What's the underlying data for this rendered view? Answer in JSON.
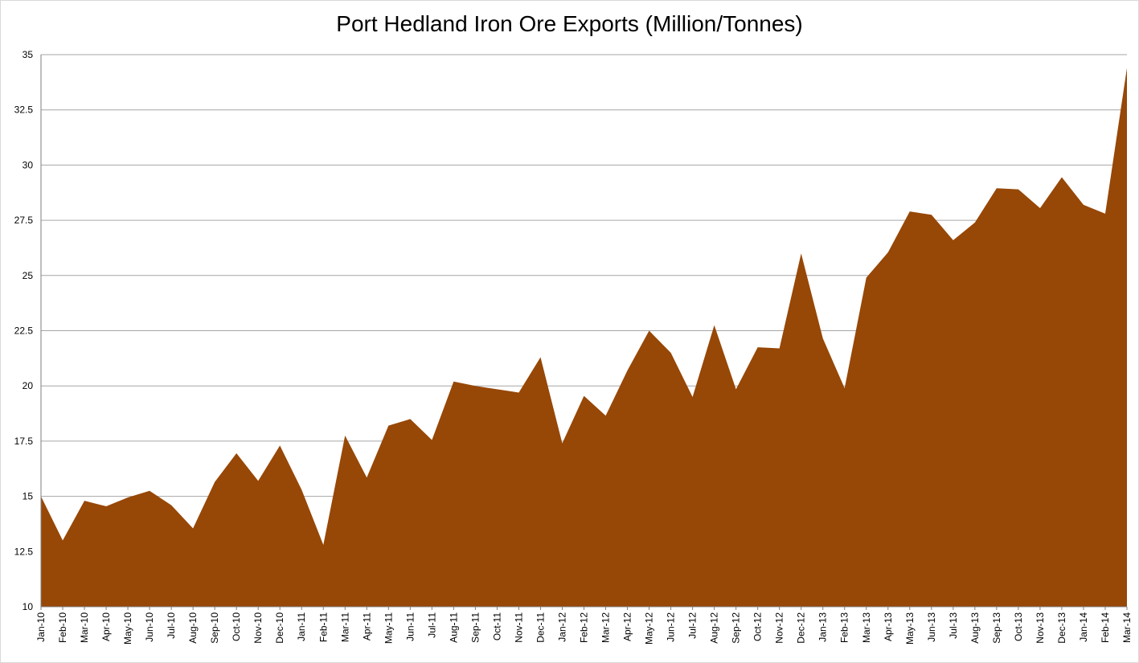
{
  "chart_data": {
    "type": "area",
    "title": "Port Hedland Iron Ore Exports (Million/Tonnes)",
    "xlabel": "",
    "ylabel": "",
    "ylim": [
      10,
      35
    ],
    "yticks": [
      "10",
      "12.5",
      "15",
      "17.5",
      "20",
      "22.5",
      "25",
      "27.5",
      "30",
      "32.5",
      "35"
    ],
    "ytick_values": [
      10,
      12.5,
      15,
      17.5,
      20,
      22.5,
      25,
      27.5,
      30,
      32.5,
      35
    ],
    "grid": true,
    "legend": "none",
    "fill_color": "#974706",
    "categories": [
      "Jan-10",
      "Feb-10",
      "Mar-10",
      "Apr-10",
      "May-10",
      "Jun-10",
      "Jul-10",
      "Aug-10",
      "Sep-10",
      "Oct-10",
      "Nov-10",
      "Dec-10",
      "Jan-11",
      "Feb-11",
      "Mar-11",
      "Apr-11",
      "May-11",
      "Jun-11",
      "Jul-11",
      "Aug-11",
      "Sep-11",
      "Oct-11",
      "Nov-11",
      "Dec-11",
      "Jan-12",
      "Feb-12",
      "Mar-12",
      "Apr-12",
      "May-12",
      "Jun-12",
      "Jul-12",
      "Aug-12",
      "Sep-12",
      "Oct-12",
      "Nov-12",
      "Dec-12",
      "Jan-13",
      "Feb-13",
      "Mar-13",
      "Apr-13",
      "May-13",
      "Jun-13",
      "Jul-13",
      "Aug-13",
      "Sep-13",
      "Oct-13",
      "Nov-13",
      "Dec-13",
      "Jan-14",
      "Feb-14",
      "Mar-14"
    ],
    "series": [
      {
        "values": [
          15.0,
          13.0,
          14.8,
          14.55,
          14.95,
          15.25,
          14.6,
          13.55,
          15.65,
          16.95,
          15.7,
          17.3,
          15.3,
          12.8,
          17.75,
          15.85,
          18.2,
          18.5,
          17.55,
          20.2,
          20.0,
          19.85,
          19.7,
          21.3,
          17.4,
          19.55,
          18.65,
          20.7,
          22.5,
          21.5,
          19.5,
          22.75,
          19.85,
          21.75,
          21.7,
          26.0,
          22.15,
          19.9,
          24.9,
          26.05,
          27.9,
          27.75,
          26.6,
          27.4,
          28.95,
          28.9,
          28.05,
          29.45,
          28.2,
          27.8,
          34.4
        ]
      }
    ]
  }
}
